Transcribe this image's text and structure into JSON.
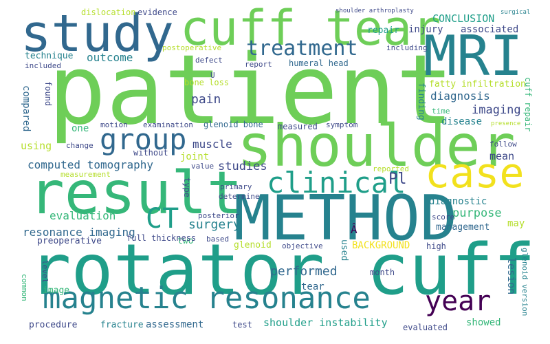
{
  "palette": {
    "background": "#ffffff",
    "yellow": "#f2e11d",
    "lime": "#b5de2b",
    "green": "#6ece58",
    "mint": "#35b779",
    "teal": "#1f9e89",
    "cyan": "#26828e",
    "blue": "#31688e",
    "indigo": "#3e4989",
    "violet": "#482878",
    "purple": "#440154"
  },
  "words": {
    "w1": "patient",
    "w2": "rotator cuff",
    "w3": "METHOD",
    "w4": "shoulder",
    "w5": "result",
    "w6": "cuff tear",
    "w7": "study",
    "w8": "MRI",
    "w9": "magnetic resonance",
    "w10": "case",
    "w11": "clinical",
    "w12": "group",
    "w13": "treatment",
    "w14": "CT",
    "w15": "year",
    "w16": "computed tomography",
    "w17": "resonance imaging",
    "w18": "Pl",
    "w19": "performed",
    "w20": "surgery",
    "w21": "shoulder instability",
    "w22": "diagnosis",
    "w23": "pain",
    "w24": "imaging",
    "w25": "outcome",
    "w26": "studies",
    "w27": "muscle",
    "w28": "evaluation",
    "w29": "purpose",
    "w30": "diagnostic",
    "w31": "mean",
    "w32": "BACKGROUND",
    "w33": "CONCLUSION",
    "w34": "associated",
    "w35": "injury",
    "w36": "repair",
    "w37": "technique",
    "w38": "using",
    "w39": "compared",
    "w40": "preoperative",
    "w41": "assessment",
    "w42": "fracture",
    "w43": "showed",
    "w44": "management",
    "w45": "glenoid",
    "w46": "tear",
    "w47": "joint",
    "w48": "lesion",
    "w49": "fatty infiltration",
    "w50": "two",
    "w51": "one",
    "w52": "may",
    "w53": "used",
    "w54": "finding",
    "w55": "disease",
    "w56": "full thickness",
    "w57": "evidence",
    "w58": "dislocation",
    "w59": "postoperative",
    "w60": "defect",
    "w61": "report",
    "w62": "humeral head",
    "w63": "including",
    "w64": "included",
    "w65": "bone loss",
    "w66": "found",
    "w67": "motion",
    "w68": "examination",
    "w69": "glenoid bone",
    "w70": "measured",
    "w71": "symptom",
    "w72": "change",
    "w73": "without",
    "w74": "value",
    "w75": "type",
    "w76": "measurement",
    "w77": "primary",
    "w78": "determine",
    "w79": "posterior",
    "w80": "based",
    "w81": "objective",
    "w82": "high",
    "w83": "score",
    "w84": "follow",
    "w85": "reported",
    "w86": "time",
    "w87": "presence",
    "w88": "cuff repair",
    "w89": "glenoid version",
    "w90": "month",
    "w91": "level",
    "w92": "image",
    "w93": "common",
    "w94": "procedure",
    "w95": "test",
    "w96": "evaluated",
    "w97": "shoulder arthroplasty",
    "w98": "surgical",
    "w99": "U",
    "w100": "Â"
  }
}
